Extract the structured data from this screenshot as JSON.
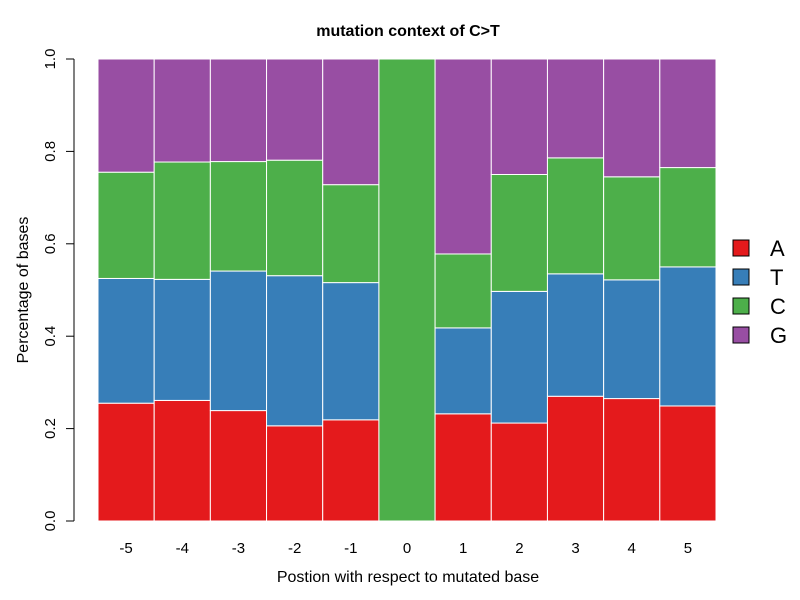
{
  "chart_data": {
    "type": "bar",
    "stacked": true,
    "title": "mutation context of C>T",
    "xlabel": "Postion with respect to mutated base",
    "ylabel": "Percentage of bases",
    "ylim": [
      0,
      1
    ],
    "yticks": [
      "0.0",
      "0.2",
      "0.4",
      "0.6",
      "0.8",
      "1.0"
    ],
    "categories": [
      "-5",
      "-4",
      "-3",
      "-2",
      "-1",
      "0",
      "1",
      "2",
      "3",
      "4",
      "5"
    ],
    "series": [
      {
        "name": "A",
        "color": "#e41a1c",
        "values": [
          0.255,
          0.261,
          0.239,
          0.206,
          0.219,
          0.0,
          0.232,
          0.212,
          0.27,
          0.265,
          0.249
        ]
      },
      {
        "name": "T",
        "color": "#377eb8",
        "values": [
          0.27,
          0.262,
          0.302,
          0.325,
          0.297,
          0.0,
          0.186,
          0.285,
          0.265,
          0.257,
          0.301
        ]
      },
      {
        "name": "C",
        "color": "#4daf4a",
        "values": [
          0.23,
          0.254,
          0.237,
          0.25,
          0.212,
          1.0,
          0.16,
          0.253,
          0.251,
          0.223,
          0.215
        ]
      },
      {
        "name": "G",
        "color": "#984ea3",
        "values": [
          0.245,
          0.223,
          0.222,
          0.219,
          0.272,
          0.0,
          0.422,
          0.25,
          0.214,
          0.255,
          0.235
        ]
      }
    ],
    "legend_position": "right",
    "grid": false
  }
}
